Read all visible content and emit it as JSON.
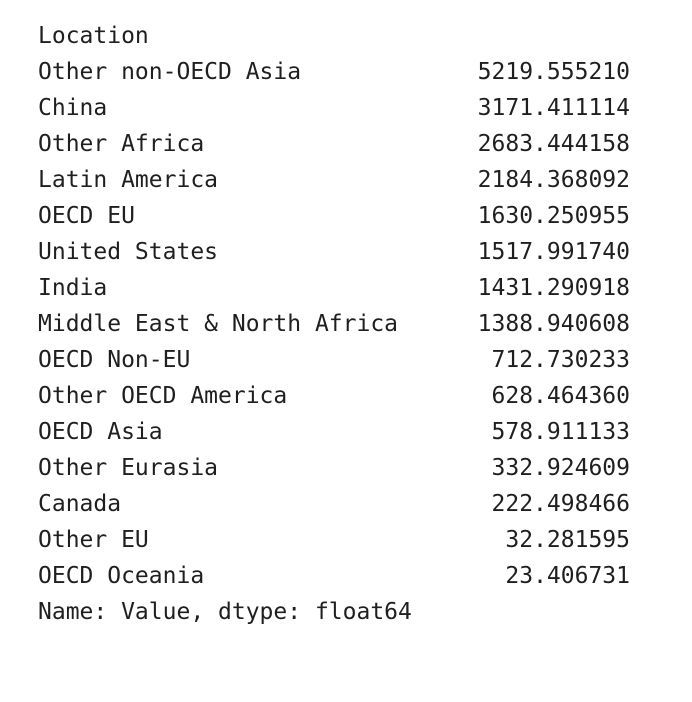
{
  "series_output": {
    "index_name": "Location",
    "rows": [
      {
        "location": "Other non-OECD Asia",
        "value": "5219.555210"
      },
      {
        "location": "China",
        "value": "3171.411114"
      },
      {
        "location": "Other Africa",
        "value": "2683.444158"
      },
      {
        "location": "Latin America",
        "value": "2184.368092"
      },
      {
        "location": "OECD EU",
        "value": "1630.250955"
      },
      {
        "location": "United States",
        "value": "1517.991740"
      },
      {
        "location": "India",
        "value": "1431.290918"
      },
      {
        "location": "Middle East & North Africa",
        "value": "1388.940608"
      },
      {
        "location": "OECD Non-EU",
        "value": "712.730233"
      },
      {
        "location": "Other OECD America",
        "value": "628.464360"
      },
      {
        "location": "OECD Asia",
        "value": "578.911133"
      },
      {
        "location": "Other Eurasia",
        "value": "332.924609"
      },
      {
        "location": "Canada",
        "value": "222.498466"
      },
      {
        "location": "Other EU",
        "value": "32.281595"
      },
      {
        "location": "OECD Oceania",
        "value": "23.406731"
      }
    ],
    "footer": "Name: Value, dtype: float64"
  }
}
